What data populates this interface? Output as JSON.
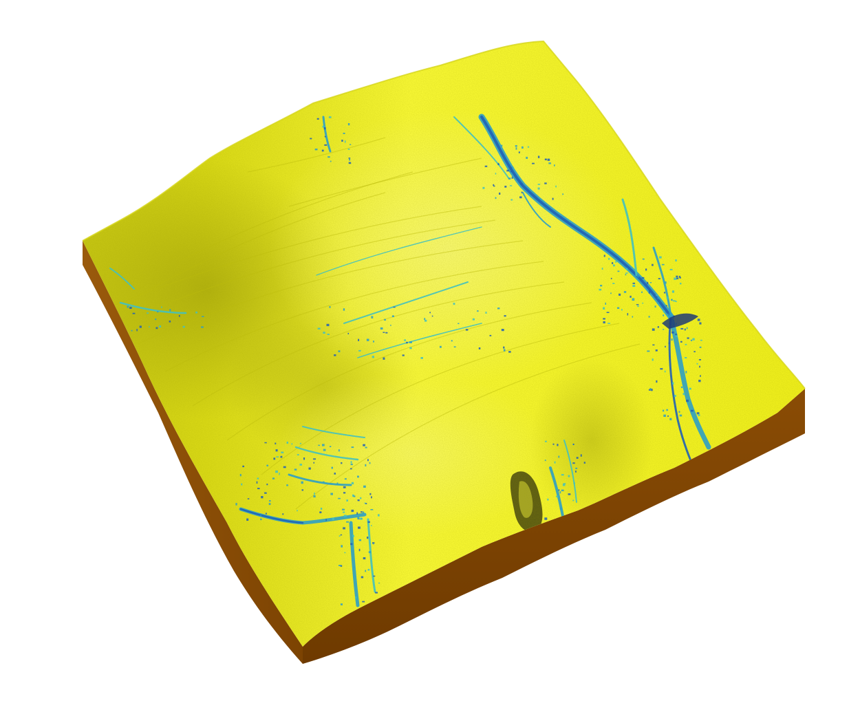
{
  "scene": {
    "subject": "3d-terrain-block",
    "colors": {
      "background": "#ffffff",
      "surface_base": "#f2f21a",
      "surface_highlight": "#ffff55",
      "surface_shadow": "#b4b412",
      "side_front": "#7a4200",
      "side_left": "#8a4f06",
      "channel_light": "#33c7e0",
      "channel_mid": "#1a9ee8",
      "channel_dark": "#0a55d6"
    }
  }
}
